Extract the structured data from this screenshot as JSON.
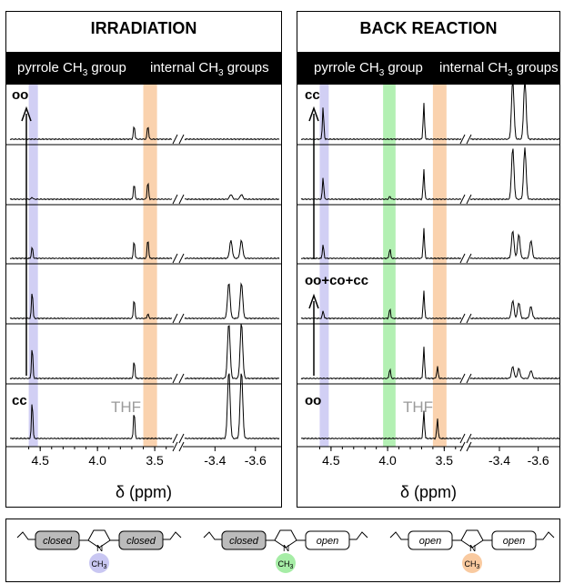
{
  "colors": {
    "blue": "#c9c7f2",
    "green": "#a6eda6",
    "orange": "#f9caa0",
    "thf": "#9a9a9a"
  },
  "panels": [
    {
      "title": "IRRADIATION",
      "header_left": "pyrrole CH",
      "header_left_tail": " group",
      "header_right": "internal CH",
      "header_right_tail": " groups",
      "sub": "3",
      "labels": {
        "top": "oo",
        "bottom": "cc",
        "thf": "THF"
      },
      "xlabel": "δ (ppm)",
      "ticks_left": [
        "4.5",
        "4.0",
        "3.5"
      ],
      "ticks_right": [
        "-3.4",
        "-3.6"
      ]
    },
    {
      "title": "BACK REACTION",
      "header_left": "pyrrole CH",
      "header_left_tail": " group",
      "header_right": "internal CH",
      "header_right_tail": " groups",
      "sub": "3",
      "labels": {
        "top": "cc",
        "middle": "oo+co+cc",
        "bottom": "oo",
        "thf": "THF"
      },
      "xlabel": "δ (ppm)",
      "ticks_left": [
        "4.5",
        "4.0",
        "3.5"
      ],
      "ticks_right": [
        "-3.4",
        "-3.6"
      ]
    }
  ],
  "chart_data": [
    {
      "type": "line",
      "title": "IRRADIATION",
      "xlabel": "δ (ppm)",
      "xlim_left": [
        4.7,
        3.35
      ],
      "xlim_right": [
        -3.25,
        -3.7
      ],
      "bands_ppm": [
        [
          4.6,
          4.52,
          "blue"
        ],
        [
          3.6,
          3.48,
          "orange"
        ]
      ],
      "series": [
        {
          "peaks": [
            [
              3.68,
              0.35
            ],
            [
              3.56,
              0.35
            ]
          ]
        },
        {
          "peaks": [
            [
              4.57,
              0.05
            ],
            [
              3.68,
              0.4
            ],
            [
              3.56,
              0.45
            ],
            [
              -3.47,
              0.12
            ],
            [
              -3.52,
              0.12
            ]
          ]
        },
        {
          "peaks": [
            [
              4.57,
              0.3
            ],
            [
              3.68,
              0.45
            ],
            [
              3.56,
              0.5
            ],
            [
              -3.47,
              0.45
            ],
            [
              -3.52,
              0.45
            ]
          ]
        },
        {
          "peaks": [
            [
              4.57,
              0.7
            ],
            [
              3.68,
              0.5
            ],
            [
              3.56,
              0.12
            ],
            [
              -3.46,
              0.9
            ],
            [
              -3.52,
              0.9
            ]
          ]
        },
        {
          "peaks": [
            [
              4.57,
              0.8
            ],
            [
              3.68,
              0.45
            ],
            [
              -3.46,
              1.4
            ],
            [
              -3.52,
              1.4
            ]
          ]
        },
        {
          "peaks": [
            [
              4.57,
              0.95
            ],
            [
              3.68,
              0.7
            ],
            [
              -3.46,
              1.7
            ],
            [
              -3.52,
              1.7
            ]
          ]
        }
      ]
    },
    {
      "type": "line",
      "title": "BACK REACTION",
      "xlabel": "δ (ppm)",
      "xlim_left": [
        4.7,
        3.35
      ],
      "xlim_right": [
        -3.25,
        -3.7
      ],
      "bands_ppm": [
        [
          4.6,
          4.52,
          "blue"
        ],
        [
          4.04,
          3.93,
          "green"
        ],
        [
          3.6,
          3.48,
          "orange"
        ]
      ],
      "series": [
        {
          "peaks": [
            [
              4.57,
              0.8
            ],
            [
              3.68,
              0.9
            ],
            [
              -3.46,
              1.5
            ],
            [
              -3.52,
              1.5
            ]
          ]
        },
        {
          "peaks": [
            [
              4.57,
              0.55
            ],
            [
              3.98,
              0.08
            ],
            [
              3.68,
              0.75
            ],
            [
              -3.46,
              1.3
            ],
            [
              -3.52,
              1.3
            ]
          ]
        },
        {
          "peaks": [
            [
              4.57,
              0.35
            ],
            [
              3.98,
              0.25
            ],
            [
              3.68,
              0.75
            ],
            [
              -3.46,
              0.7
            ],
            [
              -3.49,
              0.6
            ],
            [
              -3.55,
              0.45
            ]
          ]
        },
        {
          "peaks": [
            [
              4.57,
              0.2
            ],
            [
              3.98,
              0.25
            ],
            [
              3.68,
              0.7
            ],
            [
              -3.46,
              0.45
            ],
            [
              -3.49,
              0.4
            ],
            [
              -3.55,
              0.3
            ]
          ]
        },
        {
          "peaks": [
            [
              3.98,
              0.25
            ],
            [
              3.68,
              0.8
            ],
            [
              3.56,
              0.3
            ],
            [
              -3.46,
              0.3
            ],
            [
              -3.49,
              0.25
            ],
            [
              -3.55,
              0.2
            ]
          ]
        },
        {
          "peaks": [
            [
              3.68,
              0.7
            ],
            [
              3.56,
              0.5
            ]
          ]
        }
      ]
    }
  ],
  "legend": {
    "items": [
      {
        "left": "closed",
        "right": "closed",
        "color": "blue"
      },
      {
        "left": "closed",
        "right": "open",
        "color": "green"
      },
      {
        "left": "open",
        "right": "open",
        "color": "orange"
      }
    ],
    "atom": "N",
    "methyl": "CH",
    "methyl_sub": "3"
  }
}
